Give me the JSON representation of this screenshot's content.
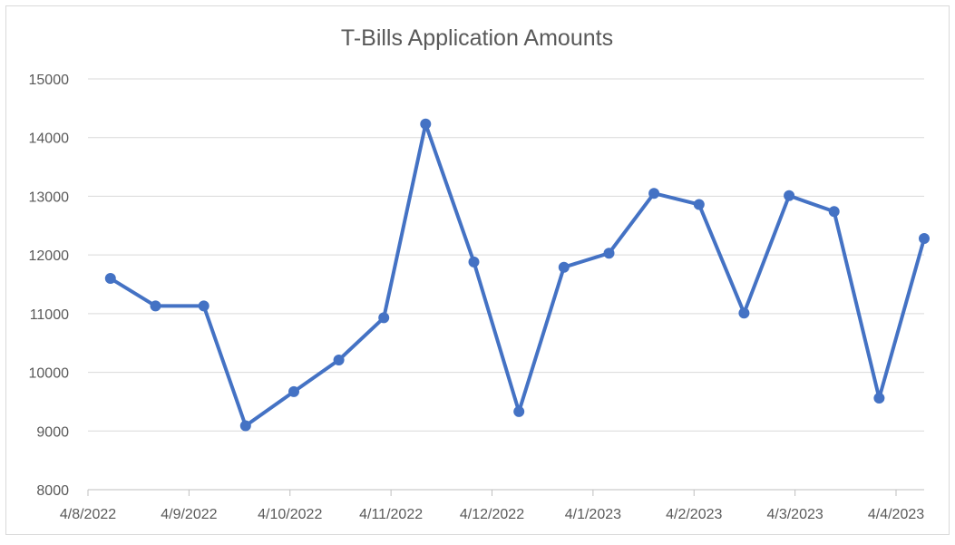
{
  "chart_data": {
    "type": "line",
    "title": "T-Bills Application Amounts",
    "xlabel": "",
    "ylabel": "",
    "ylim": [
      8000,
      15000
    ],
    "yticks": [
      8000,
      9000,
      10000,
      11000,
      12000,
      13000,
      14000,
      15000
    ],
    "x_tick_labels": [
      "4/8/2022",
      "4/9/2022",
      "4/10/2022",
      "4/11/2022",
      "4/12/2022",
      "4/1/2023",
      "4/2/2023",
      "4/3/2023",
      "4/4/2023"
    ],
    "grid": true,
    "legend": "none",
    "series": [
      {
        "color": "#4472c4",
        "points": [
          {
            "x": "2022-08-04",
            "y": 11600
          },
          {
            "x": "2022-08-18",
            "y": 11130
          },
          {
            "x": "2022-09-02",
            "y": 11130
          },
          {
            "x": "2022-09-15",
            "y": 9090
          },
          {
            "x": "2022-09-30",
            "y": 9670
          },
          {
            "x": "2022-10-14",
            "y": 10210
          },
          {
            "x": "2022-10-28",
            "y": 10930
          },
          {
            "x": "2022-11-10",
            "y": 14230
          },
          {
            "x": "2022-11-25",
            "y": 11880
          },
          {
            "x": "2022-12-09",
            "y": 9330
          },
          {
            "x": "2022-12-23",
            "y": 11790
          },
          {
            "x": "2023-01-06",
            "y": 12030
          },
          {
            "x": "2023-01-20",
            "y": 13050
          },
          {
            "x": "2023-02-03",
            "y": 12860
          },
          {
            "x": "2023-02-17",
            "y": 11010
          },
          {
            "x": "2023-03-03",
            "y": 13010
          },
          {
            "x": "2023-03-17",
            "y": 12740
          },
          {
            "x": "2023-03-31",
            "y": 9560
          },
          {
            "x": "2023-04-14",
            "y": 12280
          }
        ]
      }
    ],
    "colors": {
      "line": "#4472c4",
      "grid": "#d9d9d9",
      "text": "#595959"
    }
  }
}
